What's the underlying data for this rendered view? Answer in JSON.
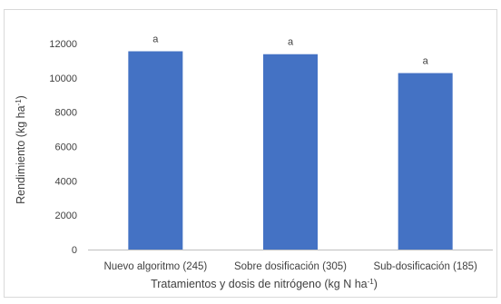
{
  "chart_data": {
    "type": "bar",
    "categories": [
      "Nuevo algoritmo (245)",
      "Sobre dosificación (305)",
      "Sub-dosificación (185)"
    ],
    "values": [
      11550,
      11380,
      10280
    ],
    "data_labels": [
      "a",
      "a",
      "a"
    ],
    "ylabel": {
      "main": "Rendimiento (kg ha",
      "sup": "-1",
      "end": ")"
    },
    "xlabel": {
      "main": "Tratamientos y dosis de nitrógeno (kg N ha",
      "sup": "-1",
      "end": ")"
    },
    "yticks": [
      0,
      2000,
      4000,
      6000,
      8000,
      10000,
      12000
    ],
    "ylim": [
      0,
      12000
    ],
    "bar_color": "#4472c4",
    "grid": false
  }
}
